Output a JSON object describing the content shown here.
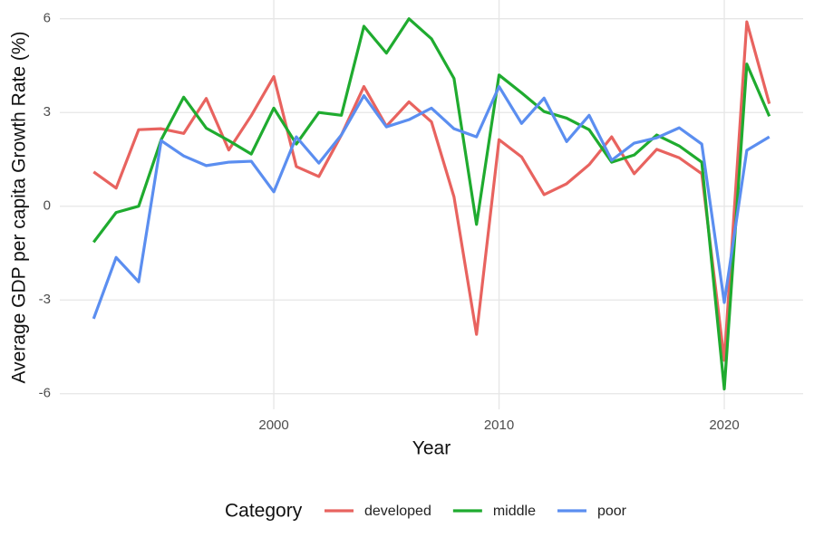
{
  "chart_data": {
    "type": "line",
    "x_label": "Year",
    "y_label": "Average GDP per capita Growth Rate (%)",
    "legend_title": "Category",
    "legend_position": "bottom",
    "grid": true,
    "x": [
      1992,
      1993,
      1994,
      1995,
      1996,
      1997,
      1998,
      1999,
      2000,
      2001,
      2002,
      2003,
      2004,
      2005,
      2006,
      2007,
      2008,
      2009,
      2010,
      2011,
      2012,
      2013,
      2014,
      2015,
      2016,
      2017,
      2018,
      2019,
      2020,
      2021,
      2022
    ],
    "xlim": [
      1990.5,
      2023.5
    ],
    "xticks": [
      2000,
      2010,
      2020
    ],
    "ylim": [
      -6.5,
      6.6
    ],
    "yticks": [
      -6,
      -3,
      0,
      3,
      6
    ],
    "series": [
      {
        "name": "developed",
        "color": "#e8635f",
        "values": [
          1.1,
          0.58,
          2.45,
          2.48,
          2.33,
          3.45,
          1.8,
          2.9,
          4.15,
          1.27,
          0.95,
          2.28,
          3.83,
          2.56,
          3.34,
          2.7,
          0.3,
          -4.1,
          2.13,
          1.58,
          0.37,
          0.72,
          1.33,
          2.22,
          1.04,
          1.82,
          1.55,
          1.04,
          -4.93,
          5.9,
          3.28
        ]
      },
      {
        "name": "middle",
        "color": "#1fab2f",
        "values": [
          -1.15,
          -0.2,
          0.0,
          2.13,
          3.49,
          2.5,
          2.1,
          1.67,
          3.14,
          1.99,
          3.0,
          2.91,
          5.76,
          4.9,
          6.0,
          5.36,
          4.09,
          -0.58,
          4.2,
          3.63,
          3.03,
          2.82,
          2.45,
          1.41,
          1.64,
          2.28,
          1.93,
          1.41,
          -5.85,
          4.55,
          2.88
        ]
      },
      {
        "name": "poor",
        "color": "#5b8ef0",
        "values": [
          -3.6,
          -1.64,
          -2.42,
          2.1,
          1.61,
          1.3,
          1.41,
          1.44,
          0.46,
          2.22,
          1.38,
          2.28,
          3.54,
          2.54,
          2.77,
          3.14,
          2.48,
          2.22,
          3.83,
          2.65,
          3.46,
          2.07,
          2.91,
          1.47,
          2.02,
          2.19,
          2.51,
          1.99,
          -3.08,
          1.79,
          2.22
        ]
      }
    ]
  }
}
